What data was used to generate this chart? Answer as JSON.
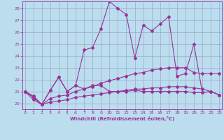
{
  "xlabel": "Windchill (Refroidissement éolien,°C)",
  "bg_color": "#bbddee",
  "line_color": "#993399",
  "grid_color": "#99aacc",
  "xmin": 0,
  "xmax": 23,
  "ymin": 19.5,
  "ymax": 28.6,
  "yticks": [
    20,
    21,
    22,
    23,
    24,
    25,
    26,
    27,
    28
  ],
  "xticks": [
    0,
    1,
    2,
    3,
    4,
    5,
    6,
    7,
    8,
    9,
    10,
    11,
    12,
    13,
    14,
    15,
    16,
    17,
    18,
    19,
    20,
    21,
    22,
    23
  ],
  "line1_x": [
    0,
    1,
    2,
    3,
    4,
    5,
    6,
    7,
    8,
    9,
    10,
    11,
    12,
    13,
    14,
    15,
    16,
    17,
    18,
    19,
    20,
    21,
    22,
    23
  ],
  "line1_y": [
    21.0,
    20.6,
    19.9,
    21.1,
    22.2,
    21.0,
    21.5,
    21.2,
    21.5,
    21.5,
    21.0,
    21.0,
    21.0,
    21.1,
    21.0,
    21.0,
    21.0,
    21.0,
    21.0,
    21.0,
    20.9,
    20.9,
    21.0,
    20.7
  ],
  "line2_x": [
    0,
    1,
    2,
    3,
    4,
    5,
    6,
    7,
    8,
    9,
    10,
    11,
    12,
    13,
    14,
    15,
    16,
    17,
    18,
    19,
    20,
    21,
    22,
    23
  ],
  "line2_y": [
    21.0,
    20.6,
    19.9,
    21.1,
    22.2,
    21.0,
    21.5,
    24.5,
    24.7,
    26.3,
    28.6,
    28.0,
    27.5,
    23.8,
    26.6,
    26.1,
    26.7,
    27.3,
    22.3,
    22.5,
    25.0,
    20.9,
    21.0,
    20.7
  ],
  "line3_x": [
    0,
    1,
    2,
    3,
    4,
    5,
    6,
    7,
    8,
    9,
    10,
    11,
    12,
    13,
    14,
    15,
    16,
    17,
    18,
    19,
    20,
    21,
    22,
    23
  ],
  "line3_y": [
    21.0,
    20.5,
    19.9,
    20.4,
    20.6,
    20.7,
    21.0,
    21.2,
    21.4,
    21.7,
    21.9,
    22.1,
    22.3,
    22.5,
    22.6,
    22.8,
    22.9,
    23.0,
    23.0,
    23.0,
    22.6,
    22.5,
    22.5,
    22.5
  ],
  "line4_x": [
    0,
    1,
    2,
    3,
    4,
    5,
    6,
    7,
    8,
    9,
    10,
    11,
    12,
    13,
    14,
    15,
    16,
    17,
    18,
    19,
    20,
    21,
    22,
    23
  ],
  "line4_y": [
    21.0,
    20.3,
    19.9,
    20.1,
    20.2,
    20.3,
    20.5,
    20.6,
    20.7,
    20.8,
    20.9,
    21.0,
    21.1,
    21.2,
    21.2,
    21.3,
    21.3,
    21.4,
    21.4,
    21.4,
    21.3,
    21.2,
    21.0,
    20.7
  ]
}
